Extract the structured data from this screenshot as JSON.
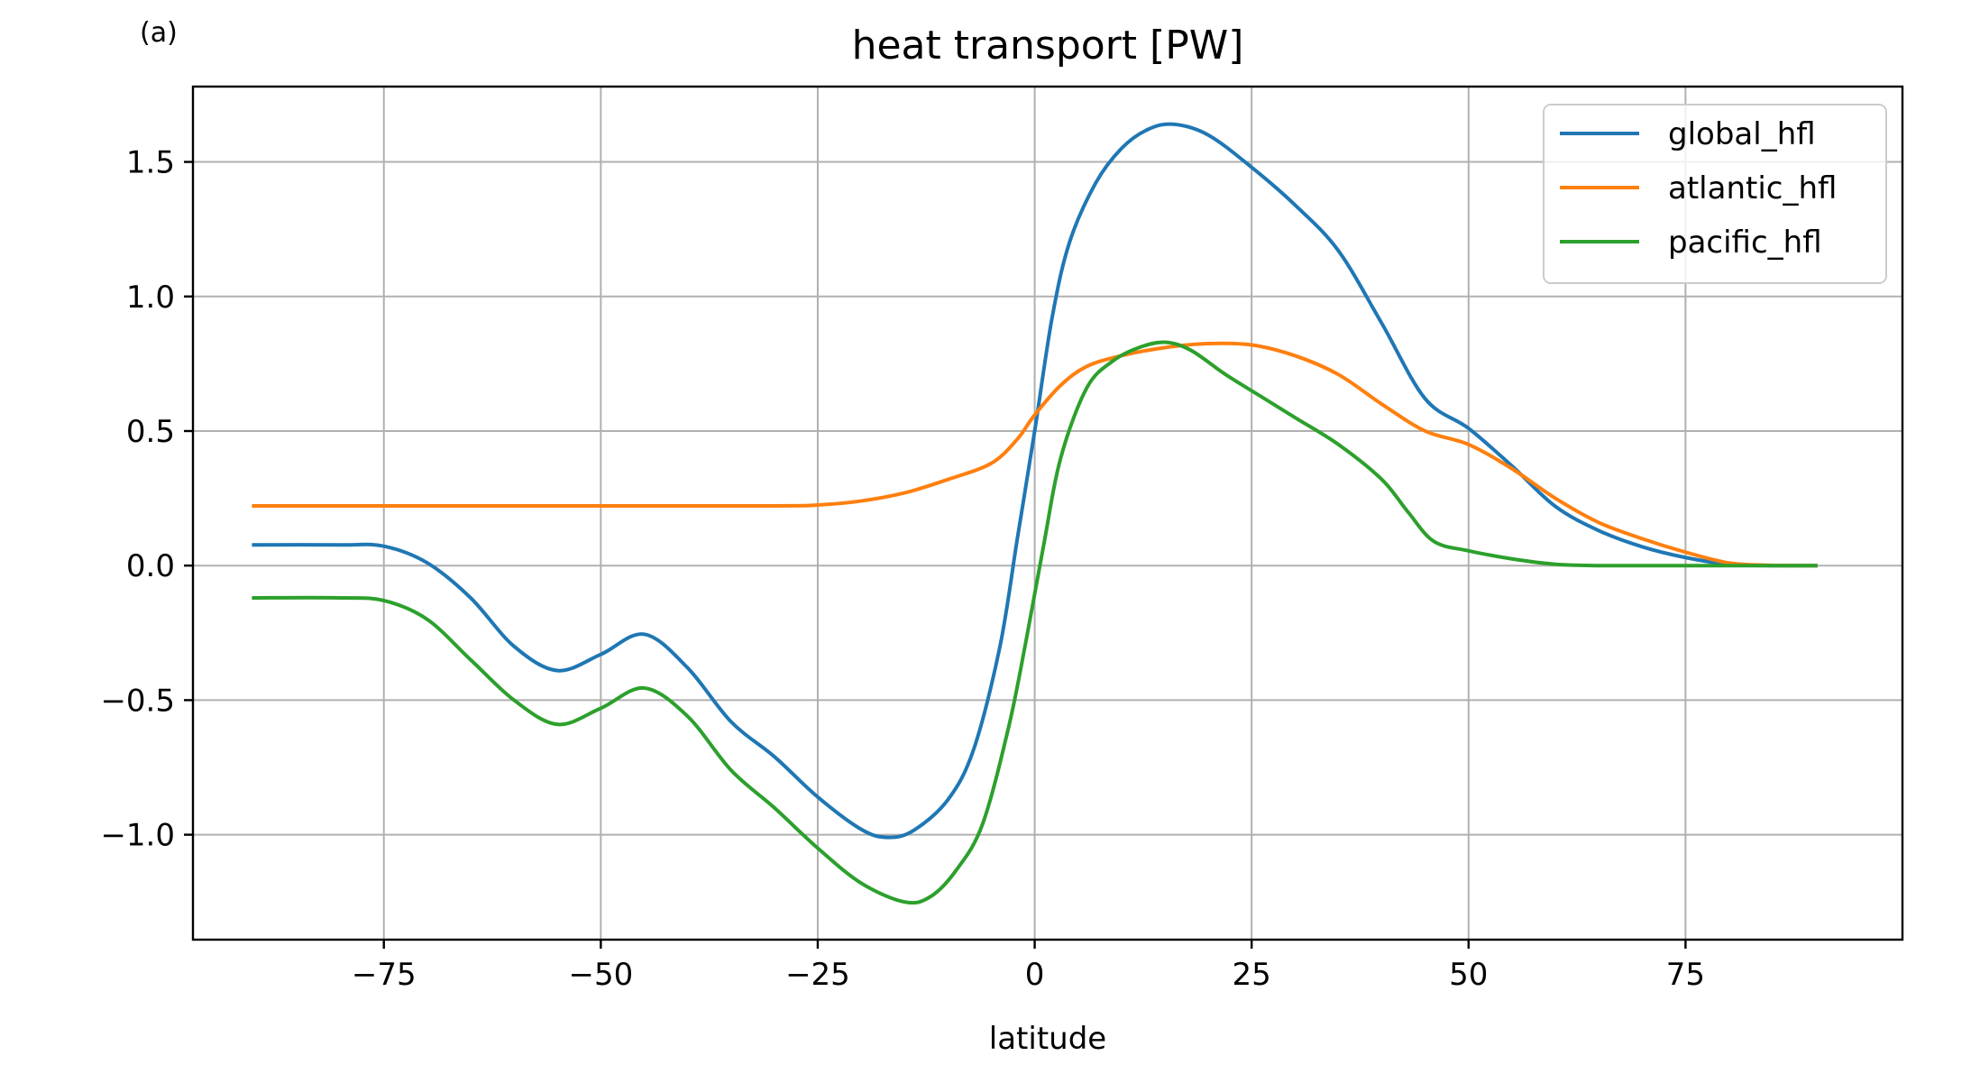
{
  "chart_data": {
    "type": "line",
    "panel_label": "(a)",
    "title": "heat transport [PW]",
    "xlabel": "latitude",
    "ylabel": "",
    "xlim": [
      -97,
      100
    ],
    "ylim": [
      -1.39,
      1.78
    ],
    "xticks": [
      -75,
      -50,
      -25,
      0,
      25,
      50,
      75
    ],
    "xtick_labels": [
      "−75",
      "−50",
      "−25",
      "0",
      "25",
      "50",
      "75"
    ],
    "yticks": [
      -1.0,
      -0.5,
      0.0,
      0.5,
      1.0,
      1.5
    ],
    "ytick_labels": [
      "−1.0",
      "−0.5",
      "0.0",
      "0.5",
      "1.0",
      "1.5"
    ],
    "grid": true,
    "legend_position": "top-right",
    "series": [
      {
        "name": "global_hfl",
        "color": "#1f77b4",
        "points": [
          [
            -90,
            0.077
          ],
          [
            -80,
            0.077
          ],
          [
            -75,
            0.072
          ],
          [
            -70,
            0.01
          ],
          [
            -65,
            -0.12
          ],
          [
            -60,
            -0.3
          ],
          [
            -55,
            -0.39
          ],
          [
            -50,
            -0.33
          ],
          [
            -45,
            -0.255
          ],
          [
            -40,
            -0.38
          ],
          [
            -35,
            -0.58
          ],
          [
            -30,
            -0.71
          ],
          [
            -25,
            -0.86
          ],
          [
            -20,
            -0.98
          ],
          [
            -17,
            -1.01
          ],
          [
            -14,
            -0.985
          ],
          [
            -10,
            -0.87
          ],
          [
            -7,
            -0.68
          ],
          [
            -4,
            -0.3
          ],
          [
            -2,
            0.1
          ],
          [
            0,
            0.5
          ],
          [
            2,
            0.92
          ],
          [
            4,
            1.2
          ],
          [
            7,
            1.42
          ],
          [
            10,
            1.55
          ],
          [
            13,
            1.62
          ],
          [
            16,
            1.64
          ],
          [
            20,
            1.6
          ],
          [
            25,
            1.48
          ],
          [
            30,
            1.34
          ],
          [
            35,
            1.17
          ],
          [
            40,
            0.9
          ],
          [
            45,
            0.62
          ],
          [
            50,
            0.51
          ],
          [
            55,
            0.37
          ],
          [
            60,
            0.22
          ],
          [
            65,
            0.13
          ],
          [
            70,
            0.07
          ],
          [
            75,
            0.03
          ],
          [
            80,
            0.005
          ],
          [
            85,
            0.0
          ],
          [
            90,
            0.0
          ]
        ]
      },
      {
        "name": "atlantic_hfl",
        "color": "#ff7f0e",
        "points": [
          [
            -90,
            0.222
          ],
          [
            -70,
            0.222
          ],
          [
            -50,
            0.222
          ],
          [
            -30,
            0.222
          ],
          [
            -25,
            0.225
          ],
          [
            -20,
            0.24
          ],
          [
            -15,
            0.27
          ],
          [
            -10,
            0.32
          ],
          [
            -5,
            0.38
          ],
          [
            -2,
            0.47
          ],
          [
            0,
            0.56
          ],
          [
            3,
            0.67
          ],
          [
            6,
            0.74
          ],
          [
            10,
            0.78
          ],
          [
            15,
            0.81
          ],
          [
            20,
            0.825
          ],
          [
            25,
            0.82
          ],
          [
            30,
            0.78
          ],
          [
            35,
            0.71
          ],
          [
            40,
            0.6
          ],
          [
            45,
            0.5
          ],
          [
            50,
            0.45
          ],
          [
            55,
            0.36
          ],
          [
            60,
            0.25
          ],
          [
            65,
            0.16
          ],
          [
            70,
            0.1
          ],
          [
            75,
            0.05
          ],
          [
            80,
            0.01
          ],
          [
            85,
            0.001
          ],
          [
            90,
            0.0
          ]
        ]
      },
      {
        "name": "pacific_hfl",
        "color": "#2ca02c",
        "points": [
          [
            -90,
            -0.12
          ],
          [
            -80,
            -0.12
          ],
          [
            -75,
            -0.13
          ],
          [
            -70,
            -0.2
          ],
          [
            -65,
            -0.35
          ],
          [
            -60,
            -0.5
          ],
          [
            -55,
            -0.59
          ],
          [
            -50,
            -0.53
          ],
          [
            -45,
            -0.455
          ],
          [
            -40,
            -0.56
          ],
          [
            -35,
            -0.76
          ],
          [
            -30,
            -0.9
          ],
          [
            -25,
            -1.05
          ],
          [
            -20,
            -1.18
          ],
          [
            -15,
            -1.25
          ],
          [
            -12,
            -1.23
          ],
          [
            -9,
            -1.13
          ],
          [
            -6,
            -0.96
          ],
          [
            -3,
            -0.6
          ],
          [
            -1,
            -0.28
          ],
          [
            1,
            0.07
          ],
          [
            3,
            0.4
          ],
          [
            6,
            0.66
          ],
          [
            9,
            0.76
          ],
          [
            12,
            0.81
          ],
          [
            15,
            0.83
          ],
          [
            18,
            0.8
          ],
          [
            22,
            0.71
          ],
          [
            26,
            0.63
          ],
          [
            30,
            0.55
          ],
          [
            35,
            0.45
          ],
          [
            40,
            0.32
          ],
          [
            43,
            0.2
          ],
          [
            46,
            0.09
          ],
          [
            50,
            0.055
          ],
          [
            55,
            0.025
          ],
          [
            60,
            0.005
          ],
          [
            65,
            0.0
          ],
          [
            70,
            0.0
          ],
          [
            80,
            0.0
          ],
          [
            90,
            0.0
          ]
        ]
      }
    ]
  }
}
